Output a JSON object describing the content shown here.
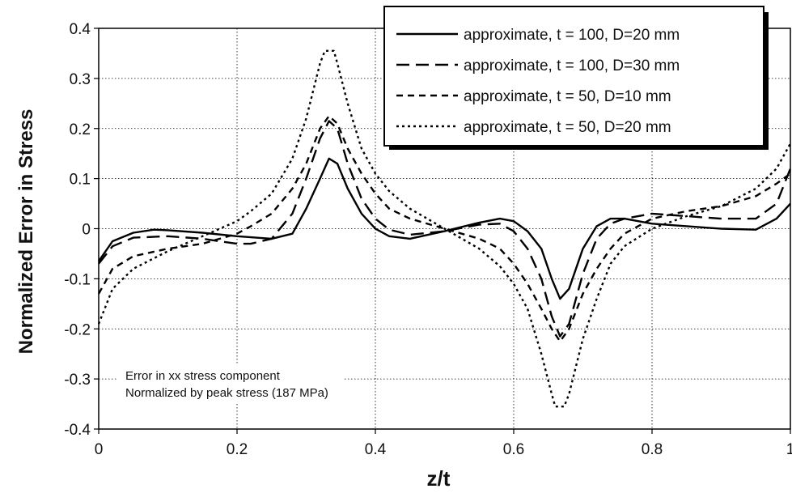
{
  "chart_data": {
    "type": "line",
    "title": "",
    "xlabel": "z/t",
    "ylabel": "Normalized Error in Stress",
    "xlim": [
      0,
      1
    ],
    "ylim": [
      -0.4,
      0.4
    ],
    "xticks": [
      "0",
      "0.2",
      "0.4",
      "0.6",
      "0.8",
      "1"
    ],
    "yticks": [
      "0.4",
      "0.3",
      "0.2",
      "0.1",
      "0",
      "-0.1",
      "-0.2",
      "-0.3",
      "-0.4"
    ],
    "grid": true,
    "legend_position": "top-right",
    "annotation": [
      "Error in xx stress component",
      "Normalized by peak stress (187 MPa)"
    ],
    "series": [
      {
        "name": "approximate, t = 100, D=20 mm",
        "dash": "solid",
        "x": [
          0,
          0.02,
          0.05,
          0.08,
          0.1,
          0.15,
          0.2,
          0.25,
          0.28,
          0.3,
          0.32,
          0.333,
          0.345,
          0.36,
          0.38,
          0.4,
          0.42,
          0.45,
          0.5,
          0.55,
          0.58,
          0.6,
          0.62,
          0.64,
          0.655,
          0.667,
          0.68,
          0.7,
          0.72,
          0.74,
          0.76,
          0.8,
          0.85,
          0.9,
          0.95,
          0.98,
          1.0
        ],
        "y": [
          -0.065,
          -0.025,
          -0.008,
          -0.002,
          -0.003,
          -0.008,
          -0.015,
          -0.02,
          -0.01,
          0.04,
          0.1,
          0.14,
          0.13,
          0.08,
          0.03,
          0.0,
          -0.015,
          -0.02,
          -0.005,
          0.012,
          0.02,
          0.015,
          -0.005,
          -0.04,
          -0.1,
          -0.14,
          -0.12,
          -0.04,
          0.005,
          0.02,
          0.02,
          0.01,
          0.005,
          0.0,
          -0.002,
          0.02,
          0.05
        ]
      },
      {
        "name": "approximate, t = 100, D=30 mm",
        "dash": "long-dash",
        "x": [
          0,
          0.02,
          0.05,
          0.1,
          0.15,
          0.2,
          0.22,
          0.25,
          0.28,
          0.3,
          0.32,
          0.333,
          0.345,
          0.36,
          0.38,
          0.4,
          0.42,
          0.45,
          0.5,
          0.55,
          0.58,
          0.6,
          0.62,
          0.64,
          0.655,
          0.667,
          0.68,
          0.7,
          0.72,
          0.74,
          0.76,
          0.8,
          0.85,
          0.9,
          0.95,
          0.98,
          1.0
        ],
        "y": [
          -0.07,
          -0.035,
          -0.018,
          -0.015,
          -0.02,
          -0.03,
          -0.03,
          -0.02,
          0.03,
          0.1,
          0.18,
          0.215,
          0.2,
          0.13,
          0.06,
          0.02,
          -0.002,
          -0.012,
          -0.005,
          0.008,
          0.01,
          -0.005,
          -0.04,
          -0.1,
          -0.175,
          -0.215,
          -0.19,
          -0.09,
          -0.02,
          0.01,
          0.02,
          0.03,
          0.025,
          0.02,
          0.02,
          0.05,
          0.12
        ]
      },
      {
        "name": "approximate, t = 50, D=10 mm",
        "dash": "short-dash",
        "x": [
          0,
          0.02,
          0.05,
          0.1,
          0.15,
          0.2,
          0.22,
          0.25,
          0.28,
          0.3,
          0.32,
          0.333,
          0.345,
          0.36,
          0.38,
          0.4,
          0.42,
          0.45,
          0.5,
          0.55,
          0.58,
          0.6,
          0.62,
          0.64,
          0.655,
          0.667,
          0.68,
          0.7,
          0.72,
          0.74,
          0.76,
          0.8,
          0.85,
          0.9,
          0.95,
          0.98,
          1.0
        ],
        "y": [
          -0.13,
          -0.08,
          -0.055,
          -0.04,
          -0.03,
          -0.01,
          0.005,
          0.03,
          0.08,
          0.13,
          0.2,
          0.225,
          0.21,
          0.16,
          0.11,
          0.07,
          0.04,
          0.02,
          0.0,
          -0.02,
          -0.04,
          -0.07,
          -0.11,
          -0.16,
          -0.2,
          -0.225,
          -0.2,
          -0.13,
          -0.08,
          -0.04,
          -0.01,
          0.02,
          0.035,
          0.045,
          0.065,
          0.09,
          0.11
        ]
      },
      {
        "name": "approximate, t = 50, D=20 mm",
        "dash": "dotted",
        "x": [
          0,
          0.02,
          0.05,
          0.1,
          0.15,
          0.2,
          0.22,
          0.25,
          0.28,
          0.3,
          0.32,
          0.327,
          0.333,
          0.34,
          0.345,
          0.36,
          0.38,
          0.4,
          0.42,
          0.45,
          0.5,
          0.55,
          0.58,
          0.6,
          0.62,
          0.64,
          0.655,
          0.66,
          0.667,
          0.673,
          0.68,
          0.7,
          0.72,
          0.74,
          0.76,
          0.8,
          0.85,
          0.9,
          0.95,
          0.98,
          1.0
        ],
        "y": [
          -0.19,
          -0.12,
          -0.08,
          -0.045,
          -0.015,
          0.015,
          0.035,
          0.07,
          0.14,
          0.22,
          0.33,
          0.355,
          0.355,
          0.355,
          0.33,
          0.25,
          0.16,
          0.11,
          0.075,
          0.04,
          0.0,
          -0.04,
          -0.075,
          -0.11,
          -0.16,
          -0.25,
          -0.33,
          -0.355,
          -0.355,
          -0.355,
          -0.33,
          -0.22,
          -0.14,
          -0.07,
          -0.035,
          0.0,
          0.025,
          0.045,
          0.08,
          0.12,
          0.17
        ]
      }
    ]
  }
}
